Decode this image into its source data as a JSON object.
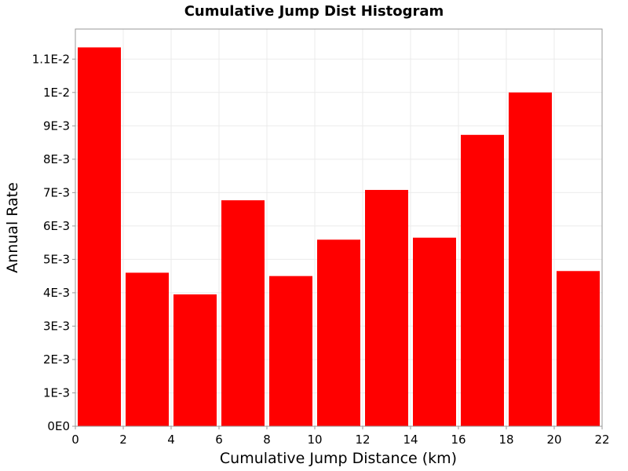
{
  "chart_data": {
    "type": "bar",
    "title": "Cumulative Jump Dist Histogram",
    "xlabel": "Cumulative Jump Distance (km)",
    "ylabel": "Annual Rate",
    "xlim": [
      0,
      22
    ],
    "ylim": [
      0,
      0.0119
    ],
    "x_ticks": [
      0,
      2,
      4,
      6,
      8,
      10,
      12,
      14,
      16,
      18,
      20,
      22
    ],
    "x_tick_labels": [
      "0",
      "2",
      "4",
      "6",
      "8",
      "10",
      "12",
      "14",
      "16",
      "18",
      "20",
      "22"
    ],
    "y_ticks": [
      0,
      0.001,
      0.002,
      0.003,
      0.004,
      0.005,
      0.006,
      0.007,
      0.008,
      0.009,
      0.01,
      0.011
    ],
    "y_tick_labels": [
      "0E0",
      "1E-3",
      "2E-3",
      "3E-3",
      "4E-3",
      "5E-3",
      "6E-3",
      "7E-3",
      "8E-3",
      "9E-3",
      "1E-2",
      "1.1E-2"
    ],
    "bin_edges": [
      0,
      2,
      4,
      6,
      8,
      10,
      12,
      14,
      16,
      18,
      20,
      22
    ],
    "values": [
      0.01135,
      0.0046,
      0.00395,
      0.00677,
      0.0045,
      0.00559,
      0.00708,
      0.00565,
      0.00873,
      0.01,
      0.00465
    ],
    "bar_color": "#ff0000",
    "grid": true,
    "grid_color": "#ebebeb",
    "plot_border_color": "#999999"
  }
}
